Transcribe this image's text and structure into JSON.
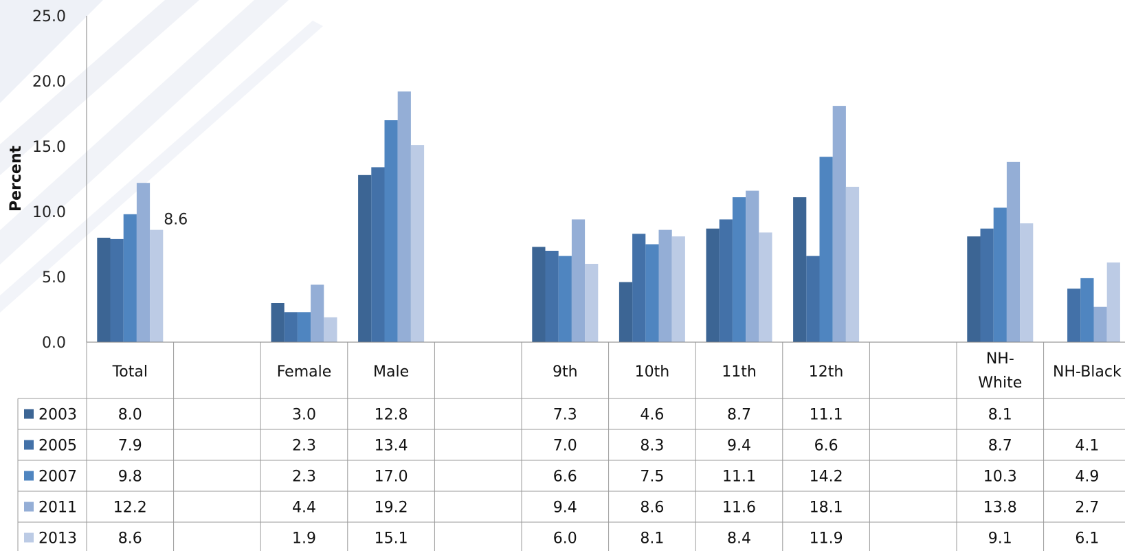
{
  "chart_data": {
    "type": "bar",
    "ylabel": "Percent",
    "ylim": [
      0,
      25
    ],
    "yticks": [
      "0.0",
      "5.0",
      "10.0",
      "15.0",
      "20.0",
      "25.0"
    ],
    "grid": false,
    "legend": "table-rows",
    "categories": [
      "Total",
      "",
      "Female",
      "Male",
      "",
      "9th",
      "10th",
      "11th",
      "12th",
      "",
      "NH-White",
      "NH-Black"
    ],
    "series": [
      {
        "name": "2003",
        "color": "#3C6594",
        "values": [
          8.0,
          null,
          3.0,
          12.8,
          null,
          7.3,
          4.6,
          8.7,
          11.1,
          null,
          8.1,
          null
        ]
      },
      {
        "name": "2005",
        "color": "#4371A8",
        "values": [
          7.9,
          null,
          2.3,
          13.4,
          null,
          7.0,
          8.3,
          9.4,
          6.6,
          null,
          8.7,
          4.1
        ]
      },
      {
        "name": "2007",
        "color": "#4F85C0",
        "values": [
          9.8,
          null,
          2.3,
          17.0,
          null,
          6.6,
          7.5,
          11.1,
          14.2,
          null,
          10.3,
          4.9
        ]
      },
      {
        "name": "2011",
        "color": "#94AED6",
        "values": [
          12.2,
          null,
          4.4,
          19.2,
          null,
          9.4,
          8.6,
          11.6,
          18.1,
          null,
          13.8,
          2.7
        ]
      },
      {
        "name": "2013",
        "color": "#BCCBE5",
        "values": [
          8.6,
          null,
          1.9,
          15.1,
          null,
          6.0,
          8.1,
          8.4,
          11.9,
          null,
          9.1,
          6.1
        ]
      }
    ],
    "annotations": [
      {
        "category": "Total",
        "series": "2013",
        "text": "8.6"
      }
    ]
  }
}
